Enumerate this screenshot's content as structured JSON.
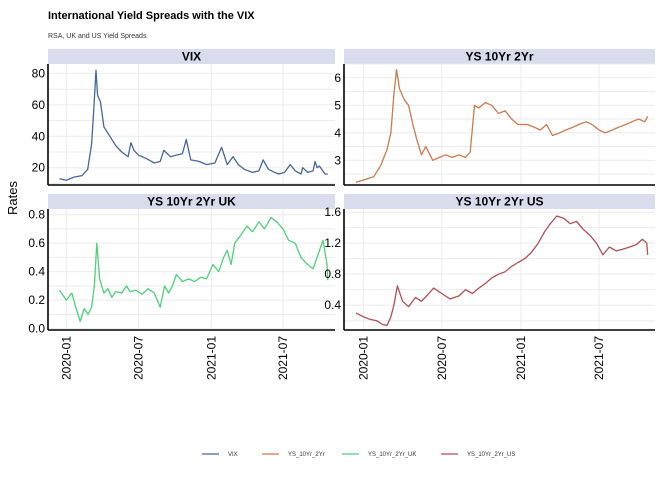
{
  "chart_data": {
    "type": "line",
    "title": "International Yield Spreads with the VIX",
    "subtitle": "RSA, UK and US Yield Spreads",
    "ylabel": "Rates",
    "legend_position": "bottom",
    "grid": true,
    "x_ticks": [
      "2020-01",
      "2020-07",
      "2021-01",
      "2021-07"
    ],
    "x_range": [
      "2019-12-01",
      "2021-10-25"
    ],
    "panels": [
      {
        "name": "VIX",
        "color": "#46689a",
        "ylim": [
          9,
          86
        ],
        "y_ticks": [
          20,
          40,
          60,
          80
        ],
        "x": [
          "2019-12-15",
          "2020-01-01",
          "2020-01-20",
          "2020-02-10",
          "2020-02-24",
          "2020-03-05",
          "2020-03-10",
          "2020-03-16",
          "2020-03-20",
          "2020-03-27",
          "2020-04-05",
          "2020-04-20",
          "2020-05-05",
          "2020-05-20",
          "2020-06-05",
          "2020-06-12",
          "2020-06-20",
          "2020-07-01",
          "2020-07-20",
          "2020-08-10",
          "2020-08-25",
          "2020-09-03",
          "2020-09-20",
          "2020-10-05",
          "2020-10-20",
          "2020-10-30",
          "2020-11-10",
          "2020-12-01",
          "2020-12-20",
          "2021-01-10",
          "2021-01-27",
          "2021-02-10",
          "2021-02-25",
          "2021-03-10",
          "2021-03-25",
          "2021-04-15",
          "2021-05-01",
          "2021-05-12",
          "2021-05-25",
          "2021-06-10",
          "2021-06-20",
          "2021-07-05",
          "2021-07-19",
          "2021-08-01",
          "2021-08-15",
          "2021-08-20",
          "2021-09-01",
          "2021-09-15",
          "2021-09-20",
          "2021-09-25",
          "2021-10-01",
          "2021-10-15",
          "2021-10-22"
        ],
        "y": [
          13,
          12,
          14,
          15,
          19,
          35,
          55,
          82,
          66,
          62,
          46,
          40,
          34,
          30,
          27,
          36,
          31,
          28,
          26,
          23,
          24,
          31,
          27,
          28,
          29,
          38,
          25,
          24,
          22,
          23,
          33,
          22,
          27,
          22,
          19,
          17,
          18,
          25,
          19,
          17,
          16,
          17,
          22,
          18,
          16,
          20,
          17,
          18,
          24,
          20,
          21,
          16,
          16
        ]
      },
      {
        "name": "YS_10Yr_2Yr",
        "color": "#cc7a50",
        "ylim": [
          2.1,
          6.5
        ],
        "y_ticks": [
          3,
          4,
          5,
          6
        ],
        "x": [
          "2019-12-15",
          "2020-01-05",
          "2020-01-25",
          "2020-02-10",
          "2020-02-25",
          "2020-03-05",
          "2020-03-12",
          "2020-03-18",
          "2020-03-25",
          "2020-04-05",
          "2020-04-15",
          "2020-04-25",
          "2020-05-05",
          "2020-05-15",
          "2020-05-25",
          "2020-06-10",
          "2020-06-25",
          "2020-07-10",
          "2020-07-25",
          "2020-08-10",
          "2020-08-25",
          "2020-09-05",
          "2020-09-15",
          "2020-09-25",
          "2020-10-10",
          "2020-10-25",
          "2020-11-10",
          "2020-11-25",
          "2020-12-10",
          "2020-12-25",
          "2021-01-15",
          "2021-02-01",
          "2021-02-15",
          "2021-03-01",
          "2021-03-15",
          "2021-04-01",
          "2021-04-15",
          "2021-05-01",
          "2021-05-15",
          "2021-06-01",
          "2021-06-15",
          "2021-07-01",
          "2021-07-15",
          "2021-08-01",
          "2021-08-15",
          "2021-09-01",
          "2021-09-15",
          "2021-10-01",
          "2021-10-15",
          "2021-10-22"
        ],
        "y": [
          2.2,
          2.3,
          2.4,
          2.8,
          3.4,
          4.0,
          5.4,
          6.3,
          5.6,
          5.2,
          5.0,
          4.3,
          3.7,
          3.2,
          3.5,
          3.0,
          3.1,
          3.2,
          3.1,
          3.2,
          3.1,
          3.3,
          5.0,
          4.9,
          5.1,
          5.0,
          4.7,
          4.8,
          4.5,
          4.3,
          4.3,
          4.2,
          4.1,
          4.3,
          3.9,
          4.0,
          4.1,
          4.2,
          4.3,
          4.4,
          4.3,
          4.1,
          4.0,
          4.1,
          4.2,
          4.3,
          4.4,
          4.5,
          4.4,
          4.6
        ]
      },
      {
        "name": "YS_10Yr_2Yr_UK",
        "color": "#4fd07a",
        "ylim": [
          -0.01,
          0.84
        ],
        "y_ticks": [
          0.0,
          0.2,
          0.4,
          0.6,
          0.8
        ],
        "x": [
          "2019-12-15",
          "2020-01-01",
          "2020-01-15",
          "2020-01-25",
          "2020-02-05",
          "2020-02-15",
          "2020-02-25",
          "2020-03-05",
          "2020-03-12",
          "2020-03-18",
          "2020-03-25",
          "2020-04-05",
          "2020-04-15",
          "2020-04-25",
          "2020-05-05",
          "2020-05-20",
          "2020-06-01",
          "2020-06-10",
          "2020-06-25",
          "2020-07-10",
          "2020-07-25",
          "2020-08-10",
          "2020-08-25",
          "2020-09-05",
          "2020-09-15",
          "2020-09-25",
          "2020-10-05",
          "2020-10-20",
          "2020-11-05",
          "2020-11-20",
          "2020-12-05",
          "2020-12-20",
          "2021-01-05",
          "2021-01-20",
          "2021-02-01",
          "2021-02-10",
          "2021-02-20",
          "2021-03-01",
          "2021-03-15",
          "2021-04-01",
          "2021-04-15",
          "2021-05-01",
          "2021-05-15",
          "2021-06-01",
          "2021-06-15",
          "2021-07-01",
          "2021-07-15",
          "2021-08-01",
          "2021-08-15",
          "2021-09-01",
          "2021-09-15",
          "2021-09-25",
          "2021-10-01",
          "2021-10-10",
          "2021-10-20",
          "2021-10-22"
        ],
        "y": [
          0.27,
          0.2,
          0.25,
          0.15,
          0.05,
          0.14,
          0.1,
          0.15,
          0.3,
          0.6,
          0.35,
          0.25,
          0.28,
          0.22,
          0.26,
          0.25,
          0.3,
          0.26,
          0.27,
          0.24,
          0.28,
          0.25,
          0.15,
          0.3,
          0.25,
          0.3,
          0.38,
          0.33,
          0.35,
          0.33,
          0.36,
          0.35,
          0.45,
          0.4,
          0.5,
          0.55,
          0.45,
          0.6,
          0.65,
          0.72,
          0.68,
          0.75,
          0.7,
          0.78,
          0.75,
          0.7,
          0.62,
          0.6,
          0.5,
          0.45,
          0.42,
          0.5,
          0.55,
          0.62,
          0.45,
          0.34
        ]
      },
      {
        "name": "YS_10Yr_2Yr_US",
        "color": "#ad5156",
        "ylim": [
          0.08,
          1.64
        ],
        "y_ticks": [
          0.4,
          0.8,
          1.2,
          1.6
        ],
        "x": [
          "2019-12-15",
          "2020-01-01",
          "2020-01-15",
          "2020-02-01",
          "2020-02-15",
          "2020-02-25",
          "2020-03-05",
          "2020-03-12",
          "2020-03-20",
          "2020-04-01",
          "2020-04-15",
          "2020-05-01",
          "2020-05-15",
          "2020-06-01",
          "2020-06-12",
          "2020-07-01",
          "2020-07-20",
          "2020-08-10",
          "2020-08-25",
          "2020-09-10",
          "2020-09-25",
          "2020-10-10",
          "2020-10-25",
          "2020-11-10",
          "2020-11-25",
          "2020-12-10",
          "2020-12-25",
          "2021-01-10",
          "2021-01-25",
          "2021-02-10",
          "2021-02-25",
          "2021-03-10",
          "2021-03-25",
          "2021-04-10",
          "2021-04-25",
          "2021-05-10",
          "2021-05-25",
          "2021-06-10",
          "2021-06-25",
          "2021-07-10",
          "2021-07-25",
          "2021-08-10",
          "2021-08-25",
          "2021-09-10",
          "2021-09-25",
          "2021-10-10",
          "2021-10-20",
          "2021-10-22"
        ],
        "y": [
          0.3,
          0.25,
          0.22,
          0.2,
          0.15,
          0.14,
          0.25,
          0.4,
          0.65,
          0.45,
          0.38,
          0.5,
          0.45,
          0.55,
          0.62,
          0.55,
          0.48,
          0.52,
          0.6,
          0.55,
          0.62,
          0.68,
          0.75,
          0.8,
          0.83,
          0.9,
          0.95,
          1.0,
          1.08,
          1.2,
          1.35,
          1.45,
          1.55,
          1.52,
          1.45,
          1.48,
          1.38,
          1.3,
          1.2,
          1.05,
          1.15,
          1.1,
          1.12,
          1.15,
          1.18,
          1.25,
          1.2,
          1.05
        ]
      }
    ],
    "legend": [
      "VIX",
      "YS_10Yr_2Yr",
      "YS_10Yr_2Yr_UK",
      "YS_10Yr_2Yr_US"
    ]
  },
  "panel_titles": [
    "VIX",
    "YS  10Yr  2Yr",
    "YS  10Yr  2Yr  UK",
    "YS  10Yr  2Yr  US"
  ]
}
